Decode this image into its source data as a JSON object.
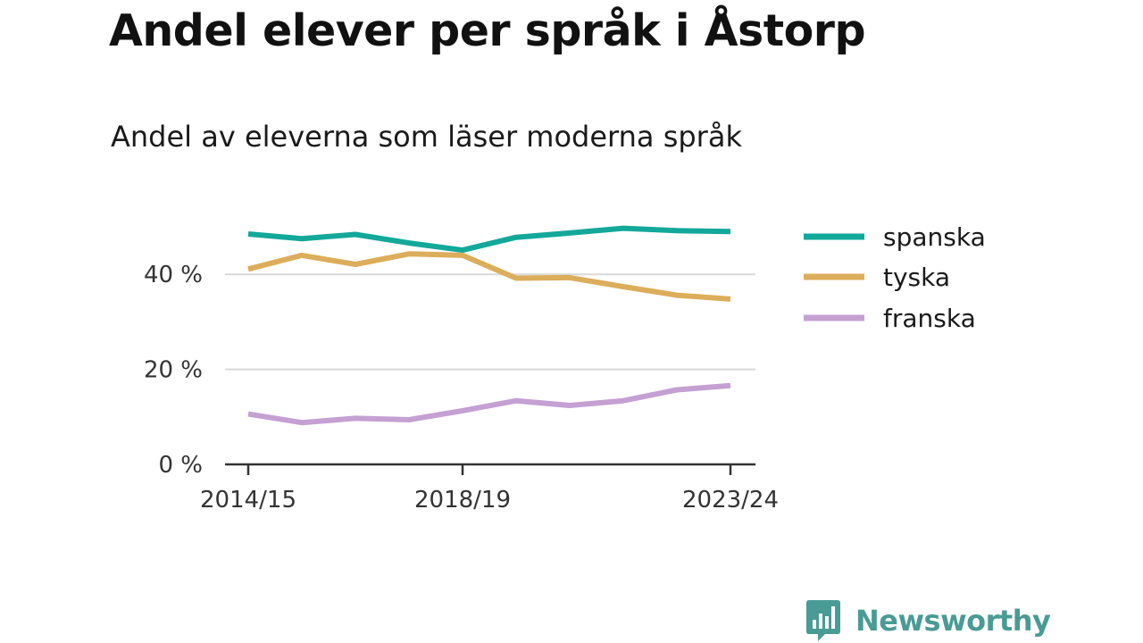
{
  "title": "Andel elever per språk i Åstorp",
  "subtitle": "Andel av eleverna som läser moderna språk",
  "brand": {
    "name": "Newsworthy",
    "color": "#4a9b95",
    "icon": "bar-chart-speech-bubble-icon"
  },
  "chart_data": {
    "type": "line",
    "x": [
      "2014/15",
      "2015/16",
      "2016/17",
      "2017/18",
      "2018/19",
      "2019/20",
      "2020/21",
      "2021/22",
      "2022/23",
      "2023/24"
    ],
    "x_tick_labels": [
      "2014/15",
      "2018/19",
      "2023/24"
    ],
    "y_ticks": [
      0,
      20,
      40
    ],
    "y_tick_labels": [
      "0 %",
      "20 %",
      "40 %"
    ],
    "ylim": [
      0,
      50
    ],
    "grid": true,
    "legend_position": "right",
    "series": [
      {
        "name": "spanska",
        "color": "#12a89a",
        "values": [
          48.5,
          47.5,
          48.4,
          46.6,
          45.1,
          47.8,
          48.7,
          49.7,
          49.2,
          49.0
        ]
      },
      {
        "name": "tyska",
        "color": "#dcad5a",
        "values": [
          41.1,
          44.0,
          42.1,
          44.3,
          44.0,
          39.2,
          39.3,
          37.4,
          35.6,
          34.8
        ]
      },
      {
        "name": "franska",
        "color": "#c4a0d3",
        "values": [
          10.6,
          8.8,
          9.7,
          9.4,
          11.3,
          13.4,
          12.4,
          13.4,
          15.7,
          16.6
        ]
      }
    ]
  }
}
